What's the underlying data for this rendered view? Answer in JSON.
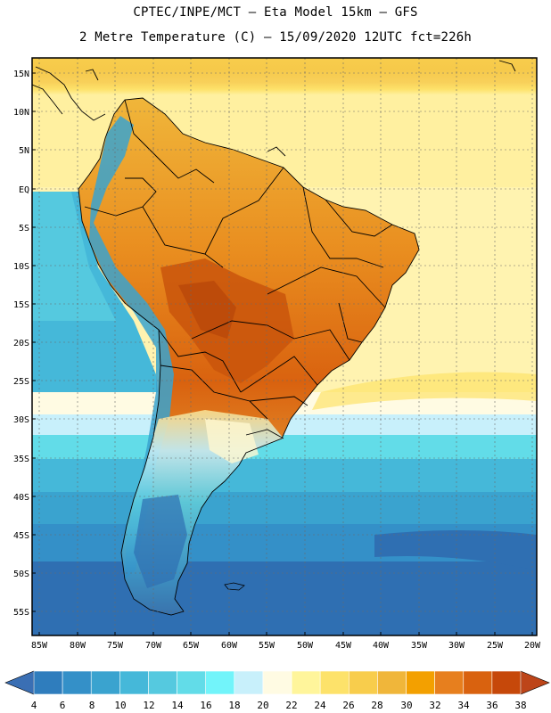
{
  "header": {
    "line1": "CPTEC/INPE/MCT –  Eta Model 15km – GFS",
    "line2": "2 Metre Temperature (C) – 15/09/2020 12UTC fct=226h"
  },
  "lat_labels": [
    "15N",
    "10N",
    "5N",
    "EQ",
    "5S",
    "10S",
    "15S",
    "20S",
    "25S",
    "30S",
    "35S",
    "40S",
    "45S",
    "50S",
    "55S"
  ],
  "lon_labels": [
    "85W",
    "80W",
    "75W",
    "70W",
    "65W",
    "60W",
    "55W",
    "50W",
    "45W",
    "40W",
    "35W",
    "30W",
    "25W",
    "20W"
  ],
  "colorbar": {
    "labels": [
      "4",
      "6",
      "8",
      "10",
      "12",
      "14",
      "16",
      "18",
      "20",
      "22",
      "24",
      "26",
      "28",
      "30",
      "32",
      "34",
      "36",
      "38"
    ],
    "colors": [
      "#3a6fb4",
      "#2f7dbd",
      "#3490c8",
      "#3aa3cf",
      "#45b8d9",
      "#55c9df",
      "#62dce8",
      "#72f4fa",
      "#c8f0fb",
      "#fffbe3",
      "#fff59b",
      "#fde26a",
      "#f8cd4c",
      "#f0b63a",
      "#f3a000",
      "#e77f1e",
      "#d9620f",
      "#c6480a",
      "#bd4519"
    ]
  }
}
